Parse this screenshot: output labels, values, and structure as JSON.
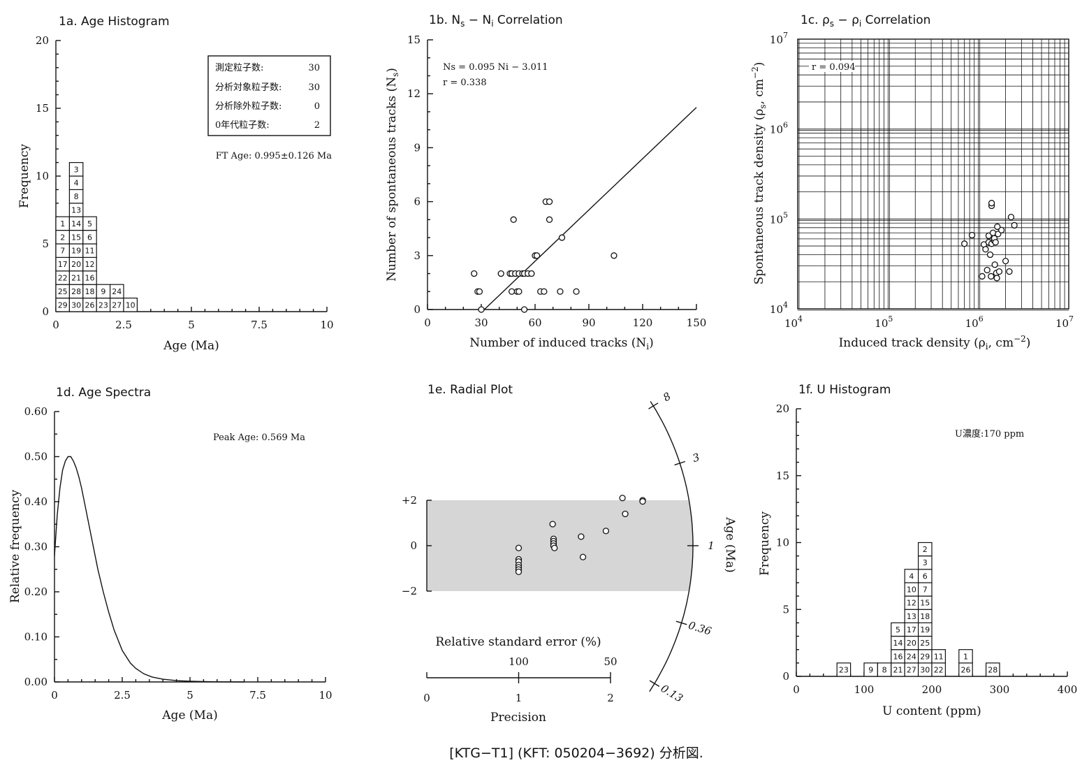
{
  "caption": "[KTG−T1] (KFT: 050204−3692) 分析図.",
  "chart_data": [
    {
      "id": "1a",
      "type": "bar",
      "title": "1a. Age Histogram",
      "xlabel": "Age (Ma)",
      "ylabel": "Frequency",
      "xlim": [
        0,
        10
      ],
      "ylim": [
        0,
        20
      ],
      "xticks": [
        "0",
        "2.5",
        "5",
        "7.5",
        "10"
      ],
      "yticks": [
        "0",
        "5",
        "10",
        "15",
        "20"
      ],
      "bin_width": 0.5,
      "bins": [
        {
          "x0": 0.0,
          "grains": [
            "29",
            "25",
            "22",
            "17",
            "7",
            "2",
            "1"
          ]
        },
        {
          "x0": 0.5,
          "grains": [
            "30",
            "28",
            "21",
            "20",
            "19",
            "15",
            "14",
            "13",
            "8",
            "4",
            "3"
          ]
        },
        {
          "x0": 1.0,
          "grains": [
            "26",
            "18",
            "16",
            "12",
            "11",
            "6",
            "5"
          ]
        },
        {
          "x0": 1.5,
          "grains": [
            "23",
            "9"
          ]
        },
        {
          "x0": 2.0,
          "grains": [
            "27",
            "24"
          ]
        },
        {
          "x0": 2.5,
          "grains": [
            "10"
          ]
        }
      ],
      "legend_box": [
        {
          "label": "測定粒子数:",
          "value": "30"
        },
        {
          "label": "分析対象粒子数:",
          "value": "30"
        },
        {
          "label": "分析除外粒子数:",
          "value": "0"
        },
        {
          "label": "0年代粒子数:",
          "value": "2"
        }
      ],
      "annotation": "FT Age: 0.995±0.126 Ma"
    },
    {
      "id": "1b",
      "type": "scatter",
      "title_main": "1b. N",
      "title_sub1": "s",
      "title_mid": " − N",
      "title_sub2": "i",
      "title_end": " Correlation",
      "xlabel_main": "Number of induced tracks (N",
      "xlabel_sub": "i",
      "xlabel_end": ")",
      "ylabel_main": "Number of spontaneous tracks (N",
      "ylabel_sub": "s",
      "ylabel_end": ")",
      "xlim": [
        0,
        150
      ],
      "ylim": [
        0,
        15
      ],
      "xticks": [
        "0",
        "30",
        "60",
        "90",
        "120",
        "150"
      ],
      "yticks": [
        "0",
        "3",
        "6",
        "9",
        "12",
        "15"
      ],
      "points": [
        [
          26,
          2
        ],
        [
          28,
          1
        ],
        [
          29,
          1
        ],
        [
          30,
          0
        ],
        [
          41,
          2
        ],
        [
          46,
          2
        ],
        [
          47,
          2
        ],
        [
          47,
          1
        ],
        [
          48,
          5
        ],
        [
          49,
          2
        ],
        [
          50,
          1
        ],
        [
          51,
          1
        ],
        [
          51,
          2
        ],
        [
          53,
          2
        ],
        [
          54,
          2
        ],
        [
          54,
          0
        ],
        [
          56,
          2
        ],
        [
          58,
          2
        ],
        [
          60,
          3
        ],
        [
          61,
          3
        ],
        [
          63,
          1
        ],
        [
          65,
          1
        ],
        [
          66,
          6
        ],
        [
          68,
          6
        ],
        [
          68,
          5
        ],
        [
          74,
          1
        ],
        [
          75,
          4
        ],
        [
          83,
          1
        ],
        [
          104,
          3
        ]
      ],
      "fit": {
        "slope": 0.095,
        "intercept": -3.011,
        "x_start": 31.7,
        "x_end": 150
      },
      "annotations": [
        "Ns = 0.095 Ni − 3.011",
        "r = 0.338"
      ]
    },
    {
      "id": "1c",
      "type": "scatter",
      "title_main": "1c. ρ",
      "title_sub1": "s",
      "title_mid": " − ρ",
      "title_sub2": "i",
      "title_end": " Correlation",
      "xlabel_main": "Induced track density (ρ",
      "xlabel_sub": "i",
      "xlabel_end": ", cm",
      "xlabel_sup": "−2",
      "xlabel_close": ")",
      "ylabel_main": "Spontaneous track density (ρ",
      "ylabel_sub": "s",
      "ylabel_end": ", cm",
      "ylabel_sup": "−2",
      "ylabel_close": ")",
      "xscale": "log",
      "yscale": "log",
      "xlim": [
        10000,
        10000000
      ],
      "ylim": [
        10000,
        10000000
      ],
      "decade_base": "10",
      "decade_exps": [
        "4",
        "5",
        "6",
        "7"
      ],
      "grid": true,
      "points": [
        [
          700000,
          53000
        ],
        [
          850000,
          66000
        ],
        [
          1100000,
          23000
        ],
        [
          1150000,
          52000
        ],
        [
          1200000,
          46000
        ],
        [
          1250000,
          27000
        ],
        [
          1300000,
          55000
        ],
        [
          1300000,
          65000
        ],
        [
          1350000,
          40000
        ],
        [
          1380000,
          23000
        ],
        [
          1400000,
          140000
        ],
        [
          1400000,
          150000
        ],
        [
          1400000,
          53000
        ],
        [
          1450000,
          70000
        ],
        [
          1500000,
          57000
        ],
        [
          1500000,
          61000
        ],
        [
          1520000,
          31000
        ],
        [
          1550000,
          55000
        ],
        [
          1580000,
          25000
        ],
        [
          1600000,
          22000
        ],
        [
          1620000,
          82000
        ],
        [
          1650000,
          68000
        ],
        [
          1700000,
          26000
        ],
        [
          1800000,
          75000
        ],
        [
          2000000,
          34000
        ],
        [
          2200000,
          26000
        ],
        [
          2300000,
          105000
        ],
        [
          2500000,
          85000
        ]
      ],
      "annotation": "r = 0.094"
    },
    {
      "id": "1d",
      "type": "line",
      "title": "1d. Age Spectra",
      "xlabel": "Age (Ma)",
      "ylabel": "Relative frequency",
      "xlim": [
        0,
        10
      ],
      "ylim": [
        0,
        0.6
      ],
      "xticks": [
        "0",
        "2.5",
        "5",
        "7.5",
        "10"
      ],
      "yticks": [
        "0.00",
        "0.10",
        "0.20",
        "0.30",
        "0.40",
        "0.50",
        "0.60"
      ],
      "curve": {
        "x": [
          0,
          0.1,
          0.2,
          0.3,
          0.4,
          0.5,
          0.6,
          0.7,
          0.8,
          0.9,
          1.0,
          1.2,
          1.4,
          1.6,
          1.8,
          2.0,
          2.2,
          2.5,
          2.8,
          3.0,
          3.3,
          3.6,
          4.0,
          4.5,
          5.0,
          5.5,
          6.0,
          6.5,
          7.0
        ],
        "y": [
          0.28,
          0.37,
          0.43,
          0.47,
          0.49,
          0.5,
          0.5,
          0.49,
          0.475,
          0.455,
          0.43,
          0.37,
          0.31,
          0.25,
          0.2,
          0.155,
          0.115,
          0.07,
          0.042,
          0.03,
          0.018,
          0.011,
          0.006,
          0.003,
          0.0015,
          0.0007,
          0.0003,
          0.0001,
          0
        ]
      },
      "annotation": "Peak Age: 0.569 Ma"
    },
    {
      "id": "1e",
      "type": "scatter",
      "title": "1e. Radial Plot",
      "ylabel_left_ticks": [
        "+2",
        "0",
        "−2"
      ],
      "x_precision_label": "Precision",
      "x_precision_ticks": [
        "0",
        "1",
        "2"
      ],
      "x_rse_label": "Relative standard error (%)",
      "x_rse_ticks": [
        "100",
        "50"
      ],
      "arc_label": "Age (Ma)",
      "arc_ticks": [
        {
          "label": "8",
          "age": 8
        },
        {
          "label": "3",
          "age": 3
        },
        {
          "label": "1",
          "age": 1
        },
        {
          "label": "0.36",
          "age": 0.36
        },
        {
          "label": "0.13",
          "age": 0.13
        }
      ],
      "reference_age": 1,
      "band": [
        -2,
        2
      ],
      "points": [
        [
          1.0,
          -0.1
        ],
        [
          1.0,
          -0.6
        ],
        [
          1.0,
          -0.7
        ],
        [
          1.0,
          -0.85
        ],
        [
          1.0,
          -0.95
        ],
        [
          1.0,
          -1.05
        ],
        [
          1.0,
          -1.15
        ],
        [
          1.37,
          0.95
        ],
        [
          1.38,
          0.3
        ],
        [
          1.38,
          0.2
        ],
        [
          1.38,
          0.1
        ],
        [
          1.38,
          0.0
        ],
        [
          1.39,
          -0.1
        ],
        [
          1.68,
          0.4
        ],
        [
          1.7,
          -0.5
        ],
        [
          1.95,
          0.65
        ],
        [
          2.13,
          2.1
        ],
        [
          2.16,
          1.4
        ],
        [
          2.35,
          2.0
        ],
        [
          2.35,
          1.95
        ]
      ]
    },
    {
      "id": "1f",
      "type": "bar",
      "title": "1f. U Histogram",
      "xlabel": "U content (ppm)",
      "ylabel": "Frequency",
      "xlim": [
        0,
        400
      ],
      "ylim": [
        0,
        20
      ],
      "xticks": [
        "0",
        "100",
        "200",
        "300",
        "400"
      ],
      "yticks": [
        "0",
        "5",
        "10",
        "15",
        "20"
      ],
      "bin_width": 20,
      "bins": [
        {
          "x0": 60,
          "grains": [
            "23"
          ]
        },
        {
          "x0": 100,
          "grains": [
            "9"
          ]
        },
        {
          "x0": 120,
          "grains": [
            "8"
          ]
        },
        {
          "x0": 140,
          "grains": [
            "21",
            "16",
            "14",
            "5"
          ]
        },
        {
          "x0": 160,
          "grains": [
            "27",
            "24",
            "20",
            "17",
            "13",
            "12",
            "10",
            "4"
          ]
        },
        {
          "x0": 180,
          "grains": [
            "30",
            "29",
            "25",
            "19",
            "18",
            "15",
            "7",
            "6",
            "3",
            "2"
          ]
        },
        {
          "x0": 200,
          "grains": [
            "22",
            "11"
          ]
        },
        {
          "x0": 240,
          "grains": [
            "26",
            "1"
          ]
        },
        {
          "x0": 280,
          "grains": [
            "28"
          ]
        }
      ],
      "annotation": "U濃度:170 ppm"
    }
  ]
}
